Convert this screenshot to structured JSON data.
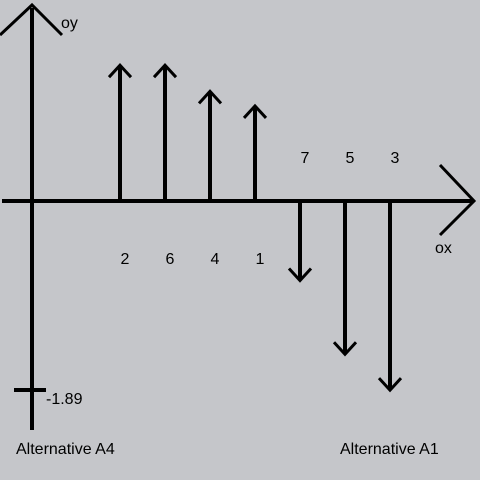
{
  "axes": {
    "y_label": "oy",
    "x_label": "ox"
  },
  "left_alternative": "Alternative A4",
  "right_alternative": "Alternative A1",
  "y_marker_value": "-1.89",
  "chart_data": {
    "type": "bar",
    "categories": [
      "2",
      "6",
      "4",
      "1",
      "7",
      "5",
      "3"
    ],
    "values": [
      1.4,
      1.4,
      1.13,
      0.98,
      -0.82,
      -1.58,
      -1.95
    ],
    "direction": [
      "up",
      "up",
      "up",
      "up",
      "down",
      "down",
      "down"
    ],
    "ylim": [
      -1.89,
      2
    ],
    "colors": {
      "background": "#c5c6ca",
      "ink": "#000000"
    }
  }
}
